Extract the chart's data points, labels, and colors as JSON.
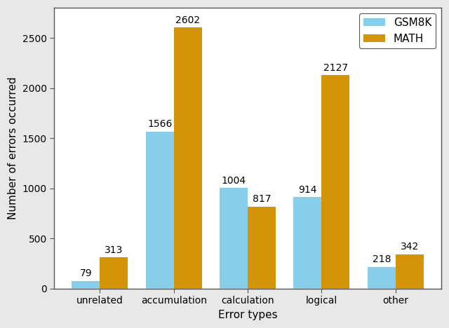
{
  "categories": [
    "unrelated",
    "accumulation",
    "calculation",
    "logical",
    "other"
  ],
  "gsm8k_values": [
    79,
    1566,
    1004,
    914,
    218
  ],
  "math_values": [
    313,
    2602,
    817,
    2127,
    342
  ],
  "gsm8k_color": "#87CEEB",
  "math_color": "#D4940A",
  "bar_width": 0.38,
  "xlabel": "Error types",
  "ylabel": "Number of errors occurred",
  "ylim": [
    0,
    2800
  ],
  "yticks": [
    0,
    500,
    1000,
    1500,
    2000,
    2500
  ],
  "legend_labels": [
    "GSM8K",
    "MATH"
  ],
  "label_fontsize": 11,
  "tick_fontsize": 10,
  "annotation_fontsize": 10,
  "background_color": "#ffffff",
  "axes_background": "#ffffff",
  "spine_color": "#555555",
  "outer_bg": "#e8e8e8"
}
